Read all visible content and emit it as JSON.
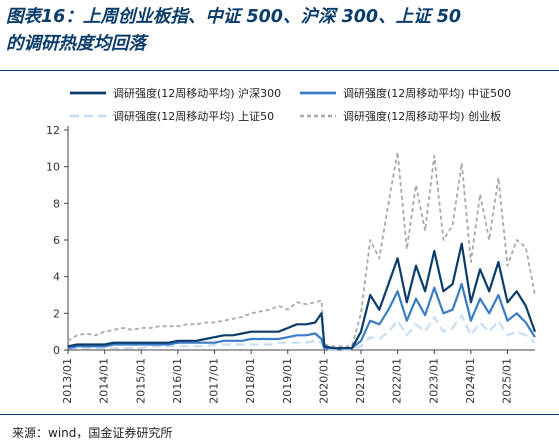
{
  "title": {
    "line1": "图表16：上周创业板指、中证 500、沪深 300、上证 50",
    "line2": "的调研热度均回落"
  },
  "source": "来源：wind，国金证券研究所",
  "chart_data": {
    "type": "line",
    "title": "图表16：上周创业板指、中证 500、沪深 300、上证 50 的调研热度均回落",
    "xlabel": "",
    "ylabel": "",
    "ylim": [
      0,
      12
    ],
    "yticks": [
      "0",
      "2",
      "4",
      "6",
      "8",
      "10",
      "12"
    ],
    "xlim": [
      2013.0,
      2025.75
    ],
    "xticks": [
      "2013/01",
      "2014/01",
      "2015/01",
      "2016/01",
      "2017/01",
      "2018/01",
      "2019/01",
      "2020/01",
      "2021/01",
      "2022/01",
      "2023/01",
      "2024/01",
      "2025/01"
    ],
    "grid": false,
    "legend_position": "top",
    "x": [
      2013.0,
      2013.25,
      2013.5,
      2013.75,
      2014.0,
      2014.25,
      2014.5,
      2014.75,
      2015.0,
      2015.25,
      2015.5,
      2015.75,
      2016.0,
      2016.25,
      2016.5,
      2016.75,
      2017.0,
      2017.25,
      2017.5,
      2017.75,
      2018.0,
      2018.25,
      2018.5,
      2018.75,
      2019.0,
      2019.25,
      2019.5,
      2019.75,
      2019.92,
      2020.0,
      2020.25,
      2020.5,
      2020.75,
      2021.0,
      2021.25,
      2021.5,
      2021.75,
      2022.0,
      2022.25,
      2022.5,
      2022.75,
      2023.0,
      2023.25,
      2023.5,
      2023.75,
      2024.0,
      2024.25,
      2024.5,
      2024.75,
      2025.0,
      2025.25,
      2025.5,
      2025.75
    ],
    "series": [
      {
        "name": "调研强度(12周移动平均) 沪深300",
        "color": "#0b3d6b",
        "dash": "solid",
        "width": 2.2,
        "values": [
          0.2,
          0.3,
          0.3,
          0.3,
          0.3,
          0.4,
          0.4,
          0.4,
          0.4,
          0.4,
          0.4,
          0.4,
          0.5,
          0.5,
          0.5,
          0.6,
          0.7,
          0.8,
          0.8,
          0.9,
          1.0,
          1.0,
          1.0,
          1.0,
          1.2,
          1.4,
          1.4,
          1.5,
          2.0,
          0.2,
          0.1,
          0.1,
          0.1,
          1.0,
          3.0,
          2.2,
          3.6,
          5.0,
          2.6,
          4.6,
          3.2,
          5.4,
          3.2,
          3.6,
          5.8,
          2.6,
          4.4,
          3.2,
          4.8,
          2.6,
          3.2,
          2.4,
          1.0
        ]
      },
      {
        "name": "调研强度(12周移动平均) 中证500",
        "color": "#3a7cc5",
        "dash": "solid",
        "width": 2.2,
        "values": [
          0.1,
          0.2,
          0.2,
          0.2,
          0.2,
          0.3,
          0.3,
          0.3,
          0.3,
          0.3,
          0.3,
          0.3,
          0.4,
          0.4,
          0.4,
          0.4,
          0.4,
          0.5,
          0.5,
          0.5,
          0.6,
          0.6,
          0.6,
          0.6,
          0.7,
          0.8,
          0.8,
          0.9,
          0.6,
          0.1,
          0.1,
          0.1,
          0.1,
          0.5,
          1.6,
          1.4,
          2.2,
          3.2,
          1.6,
          2.8,
          1.9,
          3.4,
          2.0,
          2.2,
          3.6,
          1.6,
          2.8,
          2.0,
          3.0,
          1.6,
          2.0,
          1.5,
          0.7
        ]
      },
      {
        "name": "调研强度(12周移动平均) 上证50",
        "color": "#c7ddf1",
        "dash": "long",
        "width": 2.2,
        "values": [
          0.1,
          0.1,
          0.1,
          0.1,
          0.1,
          0.1,
          0.1,
          0.1,
          0.1,
          0.2,
          0.2,
          0.2,
          0.2,
          0.2,
          0.2,
          0.2,
          0.3,
          0.3,
          0.3,
          0.3,
          0.3,
          0.3,
          0.3,
          0.4,
          0.4,
          0.4,
          0.4,
          0.5,
          0.4,
          0.0,
          0.0,
          0.0,
          0.0,
          0.2,
          0.7,
          0.6,
          1.0,
          1.6,
          0.8,
          1.4,
          1.0,
          1.8,
          1.0,
          1.2,
          1.9,
          0.8,
          1.5,
          1.0,
          1.6,
          0.8,
          1.0,
          0.8,
          0.4
        ]
      },
      {
        "name": "调研强度(12周移动平均) 创业板",
        "color": "#a9a9a9",
        "dash": "short",
        "width": 1.8,
        "values": [
          0.5,
          0.8,
          0.9,
          0.8,
          1.0,
          1.1,
          1.2,
          1.1,
          1.2,
          1.2,
          1.3,
          1.3,
          1.3,
          1.4,
          1.4,
          1.5,
          1.5,
          1.6,
          1.7,
          1.8,
          2.0,
          2.1,
          2.2,
          2.4,
          2.2,
          2.6,
          2.5,
          2.6,
          2.7,
          0.3,
          0.2,
          0.2,
          0.2,
          2.0,
          6.0,
          5.0,
          8.0,
          10.8,
          5.5,
          9.0,
          6.5,
          10.6,
          6.0,
          6.8,
          10.2,
          4.8,
          8.5,
          6.0,
          9.4,
          4.6,
          6.0,
          5.6,
          3.0
        ]
      }
    ]
  }
}
